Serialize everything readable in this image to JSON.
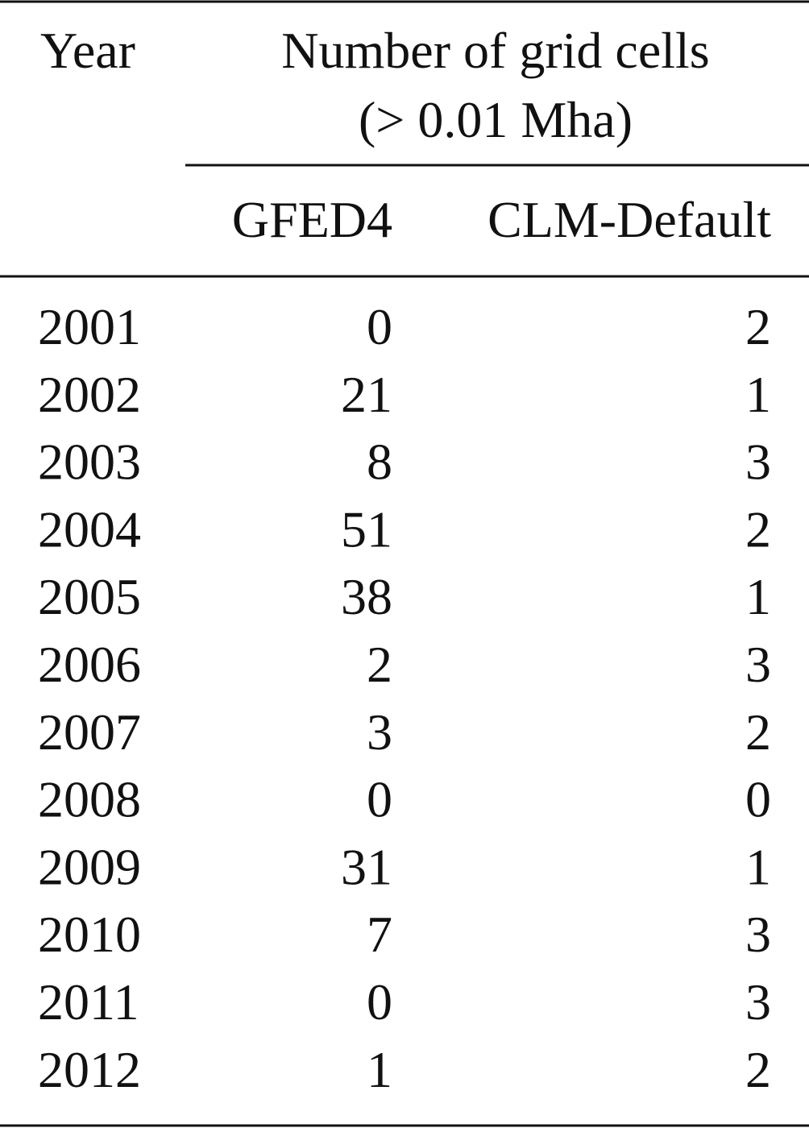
{
  "table": {
    "header": {
      "year": "Year",
      "group": [
        "Number of grid cells",
        "(> 0.01 Mha)"
      ],
      "columns": [
        "GFED4",
        "CLM-Default"
      ]
    },
    "rows": [
      [
        2001,
        0,
        2
      ],
      [
        2002,
        21,
        1
      ],
      [
        2003,
        8,
        3
      ],
      [
        2004,
        51,
        2
      ],
      [
        2005,
        38,
        1
      ],
      [
        2006,
        2,
        3
      ],
      [
        2007,
        3,
        2
      ],
      [
        2008,
        0,
        0
      ],
      [
        2009,
        31,
        1
      ],
      [
        2010,
        7,
        3
      ],
      [
        2011,
        0,
        3
      ],
      [
        2012,
        1,
        2
      ]
    ]
  }
}
